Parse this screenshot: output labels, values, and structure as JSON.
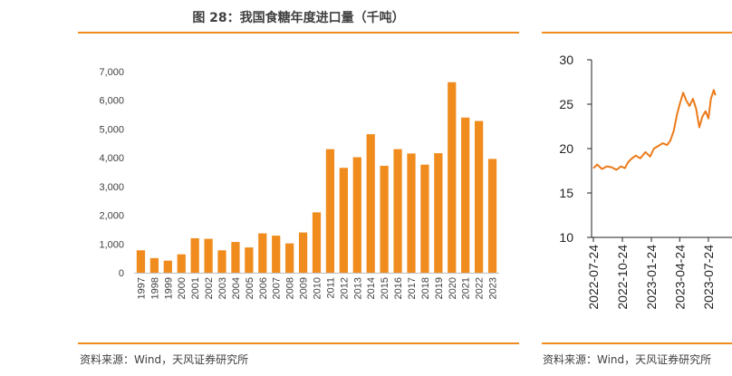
{
  "left_panel": {
    "title": "图 28：我国食糖年度进口量（千吨）",
    "source": "资料来源：Wind，天风证券研究所"
  },
  "right_panel": {
    "source": "资料来源：Wind，天风证券研究所"
  },
  "colors": {
    "accent": "#f08c1e",
    "bar": "#f08c1e",
    "line": "#ec7a18"
  },
  "chart_data": [
    {
      "type": "bar",
      "title": "我国食糖年度进口量（千吨）",
      "categories": [
        "1997",
        "1998",
        "1999",
        "2000",
        "2001",
        "2002",
        "2003",
        "2004",
        "2005",
        "2006",
        "2007",
        "2008",
        "2009",
        "2010",
        "2011",
        "2012",
        "2013",
        "2014",
        "2015",
        "2016",
        "2017",
        "2018",
        "2019",
        "2020",
        "2021",
        "2022",
        "2023"
      ],
      "values": [
        780,
        510,
        420,
        640,
        1200,
        1180,
        780,
        1070,
        880,
        1370,
        1290,
        1020,
        1400,
        2100,
        4300,
        3650,
        4020,
        4820,
        3720,
        4300,
        4150,
        3760,
        4160,
        6630,
        5400,
        5280,
        3960
      ],
      "y_ticks": [
        "0",
        "1,000",
        "2,000",
        "3,000",
        "4,000",
        "5,000",
        "6,000",
        "7,000"
      ],
      "ylim": [
        0,
        7000
      ],
      "grid": false,
      "legend": "none"
    },
    {
      "type": "line",
      "x_ticks": [
        "2022-07-24",
        "2022-10-24",
        "2023-01-24",
        "2023-04-24",
        "2023-07-24"
      ],
      "y_ticks": [
        "10",
        "15",
        "20",
        "25",
        "30"
      ],
      "ylim": [
        10,
        30
      ],
      "x_range": [
        "2022-07-24",
        "2023-08-15"
      ],
      "series": [
        {
          "x": [
            "2022-07-24",
            "2022-08-05",
            "2022-08-20",
            "2022-09-05",
            "2022-09-20",
            "2022-10-05",
            "2022-10-20",
            "2022-11-01",
            "2022-11-10",
            "2022-11-20",
            "2022-12-05",
            "2022-12-20",
            "2023-01-05",
            "2023-01-20",
            "2023-02-01",
            "2023-02-15",
            "2023-03-01",
            "2023-03-15",
            "2023-03-25",
            "2023-04-05",
            "2023-04-15",
            "2023-04-24",
            "2023-05-05",
            "2023-05-15",
            "2023-05-25",
            "2023-06-05",
            "2023-06-15",
            "2023-06-25",
            "2023-07-05",
            "2023-07-15",
            "2023-07-24",
            "2023-08-01",
            "2023-08-10",
            "2023-08-15"
          ],
          "y": [
            17.8,
            18.2,
            17.7,
            18.0,
            17.9,
            17.6,
            18.0,
            17.8,
            18.4,
            18.8,
            19.2,
            18.9,
            19.6,
            19.1,
            20.0,
            20.3,
            20.6,
            20.4,
            20.9,
            22.0,
            23.8,
            25.0,
            26.3,
            25.4,
            24.8,
            25.6,
            24.5,
            22.4,
            23.6,
            24.2,
            23.4,
            25.6,
            26.6,
            26.0
          ]
        }
      ],
      "grid": false,
      "legend": "none"
    }
  ]
}
